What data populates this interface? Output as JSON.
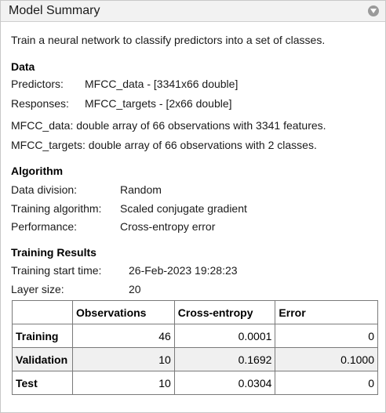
{
  "panel": {
    "title": "Model Summary",
    "collapse_icon": "chevron-down-icon"
  },
  "intro": "Train a neural network to classify predictors into a set of classes.",
  "data_section": {
    "heading": "Data",
    "predictors_label": "Predictors:",
    "predictors_value": "MFCC_data - [3341x66 double]",
    "responses_label": "Responses:",
    "responses_value": "MFCC_targets - [2x66 double]",
    "desc1": "MFCC_data: double array of 66 observations with 3341 features.",
    "desc2": "MFCC_targets: double array of 66 observations with 2 classes."
  },
  "algorithm": {
    "heading": "Algorithm",
    "items": [
      {
        "label": "Data division:",
        "value": "Random"
      },
      {
        "label": "Training algorithm:",
        "value": "Scaled conjugate gradient"
      },
      {
        "label": "Performance:",
        "value": "Cross-entropy error"
      }
    ]
  },
  "results": {
    "heading": "Training Results",
    "items": [
      {
        "label": "Training start time:",
        "value": "26-Feb-2023 19:28:23"
      },
      {
        "label": "Layer size:",
        "value": "20"
      }
    ],
    "table": {
      "columns": [
        "",
        "Observations",
        "Cross-entropy",
        "Error"
      ],
      "rows": [
        {
          "name": "Training",
          "observations": "46",
          "cross_entropy": "0.0001",
          "error": "0"
        },
        {
          "name": "Validation",
          "observations": "10",
          "cross_entropy": "0.1692",
          "error": "0.1000"
        },
        {
          "name": "Test",
          "observations": "10",
          "cross_entropy": "0.0304",
          "error": "0"
        }
      ]
    }
  }
}
